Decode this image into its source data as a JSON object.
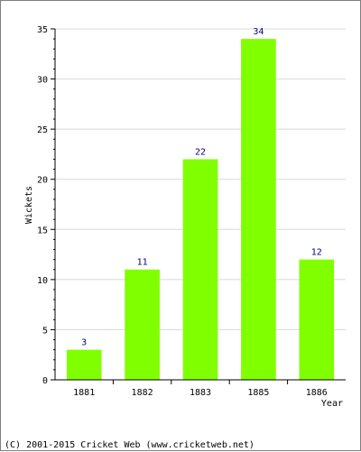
{
  "chart_data": {
    "type": "bar",
    "categories": [
      "1881",
      "1882",
      "1883",
      "1885",
      "1886"
    ],
    "values": [
      3,
      11,
      22,
      34,
      12
    ],
    "xlabel": "Year",
    "ylabel": "Wickets",
    "ylim": [
      0,
      35
    ],
    "yticks": [
      0,
      5,
      10,
      15,
      20,
      25,
      30,
      35
    ],
    "grid": true,
    "data_labels": true,
    "bar_color": "#80ff00",
    "label_color": "#000080",
    "grid_color": "#d8d8d8"
  },
  "footer": {
    "text": "(C) 2001-2015 Cricket Web (www.cricketweb.net)"
  }
}
